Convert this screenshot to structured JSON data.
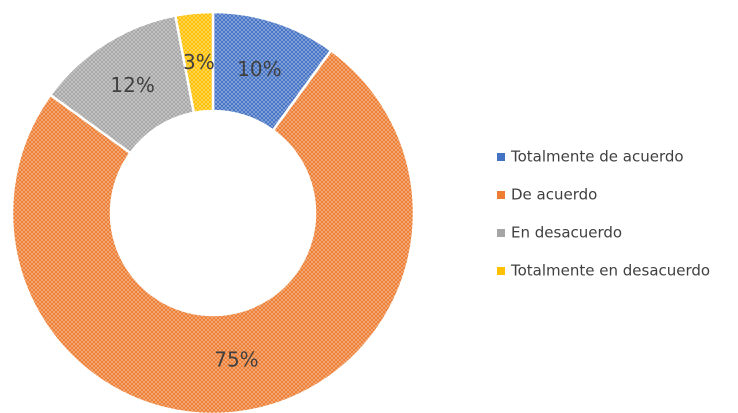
{
  "chart_data": {
    "type": "donut",
    "categories": [
      "Totalmente de acuerdo",
      "De acuerdo",
      "En desacuerdo",
      "Totalmente en desacuerdo"
    ],
    "values": [
      10,
      75,
      12,
      3
    ],
    "value_labels": [
      "10%",
      "75%",
      "12%",
      "3%"
    ],
    "colors": [
      "#4472c4",
      "#ed7d31",
      "#a5a5a5",
      "#ffc000"
    ],
    "legend": "right"
  }
}
